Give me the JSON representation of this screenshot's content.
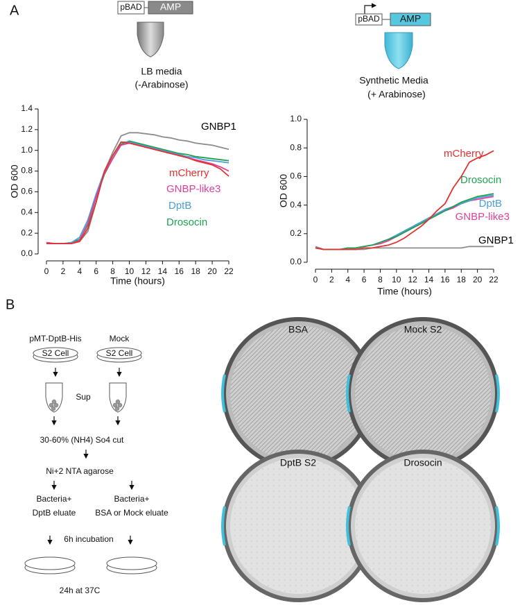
{
  "panel_a": {
    "label": "A",
    "left_construct": {
      "promoter": "pBAD",
      "gene": "AMP"
    },
    "left_condition": [
      "LB media",
      "(-Arabinose)"
    ],
    "right_construct": {
      "promoter": "pBAD",
      "gene": "AMP"
    },
    "right_condition": [
      "Synthetic Media",
      "(+ Arabinose)"
    ]
  },
  "chart_data": [
    {
      "type": "line",
      "x_label": "Time (hours)",
      "y_label": "OD 600",
      "x": [
        0,
        1,
        2,
        3,
        4,
        5,
        6,
        7,
        8,
        9,
        10,
        11,
        12,
        13,
        14,
        15,
        16,
        17,
        18,
        19,
        20,
        21,
        22
      ],
      "xlim": [
        0,
        22
      ],
      "xticks": [
        0,
        2,
        4,
        6,
        8,
        10,
        12,
        14,
        16,
        18,
        20,
        22
      ],
      "ylim": [
        0,
        1.4
      ],
      "yticks": [
        {
          "value": 0,
          "label": "0.0"
        },
        0.2,
        0.4,
        0.6,
        0.8,
        {
          "value": 1,
          "label": "1.0"
        },
        1.2,
        1.4
      ],
      "series": [
        {
          "name": "mCherry",
          "color": "#e2312e",
          "values": [
            0.1,
            0.1,
            0.1,
            0.1,
            0.12,
            0.25,
            0.5,
            0.8,
            0.95,
            1.08,
            1.07,
            1.05,
            1.03,
            1.01,
            0.99,
            0.97,
            0.95,
            0.93,
            0.9,
            0.88,
            0.86,
            0.82,
            0.75
          ]
        },
        {
          "name": "GNBP-like3",
          "color": "#e0409a",
          "values": [
            0.11,
            0.1,
            0.1,
            0.1,
            0.13,
            0.3,
            0.55,
            0.78,
            0.92,
            1.05,
            1.07,
            1.05,
            1.03,
            1.01,
            0.99,
            0.97,
            0.95,
            0.93,
            0.91,
            0.89,
            0.87,
            0.84,
            0.8
          ]
        },
        {
          "name": "DptB",
          "color": "#4a9fd8",
          "values": [
            0.11,
            0.1,
            0.1,
            0.11,
            0.16,
            0.33,
            0.58,
            0.8,
            0.95,
            1.08,
            1.08,
            1.06,
            1.04,
            1.02,
            1,
            0.98,
            0.96,
            0.94,
            0.93,
            0.91,
            0.9,
            0.89,
            0.88
          ]
        },
        {
          "name": "Drosocin",
          "color": "#1fa050",
          "values": [
            0.1,
            0.1,
            0.1,
            0.11,
            0.14,
            0.28,
            0.55,
            0.77,
            0.92,
            1.06,
            1.09,
            1.07,
            1.05,
            1.03,
            1.01,
            0.99,
            0.97,
            0.96,
            0.94,
            0.93,
            0.92,
            0.91,
            0.9
          ]
        },
        {
          "name": "GNBP1",
          "color": "#8c8c8c",
          "label_color": "#000000",
          "values": [
            0.11,
            0.1,
            0.1,
            0.1,
            0.12,
            0.22,
            0.5,
            0.8,
            0.98,
            1.14,
            1.17,
            1.17,
            1.16,
            1.15,
            1.13,
            1.12,
            1.1,
            1.09,
            1.07,
            1.06,
            1.05,
            1.03,
            1.01
          ]
        }
      ]
    },
    {
      "type": "line",
      "x_label": "Time (hours)",
      "y_label": "OD 600",
      "x": [
        0,
        1,
        2,
        3,
        4,
        5,
        6,
        7,
        8,
        9,
        10,
        11,
        12,
        13,
        14,
        15,
        16,
        17,
        18,
        19,
        20,
        21,
        22
      ],
      "xlim": [
        0,
        22
      ],
      "xticks": [
        0,
        2,
        4,
        6,
        8,
        10,
        12,
        14,
        16,
        18,
        20,
        22
      ],
      "ylim": [
        0,
        1
      ],
      "yticks": [
        {
          "value": 0,
          "label": "0.0"
        },
        0.2,
        0.4,
        0.6,
        0.8,
        {
          "value": 1,
          "label": "1.0"
        }
      ],
      "series": [
        {
          "name": "mCherry",
          "color": "#e2312e",
          "values": [
            0.1,
            0.09,
            0.09,
            0.09,
            0.09,
            0.09,
            0.1,
            0.1,
            0.11,
            0.12,
            0.14,
            0.17,
            0.21,
            0.25,
            0.3,
            0.36,
            0.41,
            0.52,
            0.6,
            0.7,
            0.73,
            0.75,
            0.78
          ]
        },
        {
          "name": "Drosocin",
          "color": "#1fa050",
          "values": [
            0.1,
            0.09,
            0.09,
            0.09,
            0.1,
            0.1,
            0.11,
            0.12,
            0.14,
            0.16,
            0.18,
            0.21,
            0.24,
            0.27,
            0.3,
            0.33,
            0.36,
            0.39,
            0.42,
            0.44,
            0.46,
            0.47,
            0.48
          ]
        },
        {
          "name": "DptB",
          "color": "#4a9fd8",
          "values": [
            0.1,
            0.09,
            0.09,
            0.09,
            0.1,
            0.1,
            0.11,
            0.12,
            0.14,
            0.16,
            0.19,
            0.22,
            0.25,
            0.28,
            0.31,
            0.34,
            0.37,
            0.39,
            0.41,
            0.43,
            0.45,
            0.46,
            0.47
          ]
        },
        {
          "name": "GNBP-like3",
          "color": "#e0409a",
          "values": [
            0.1,
            0.09,
            0.09,
            0.09,
            0.09,
            0.1,
            0.11,
            0.12,
            0.13,
            0.15,
            0.18,
            0.21,
            0.24,
            0.27,
            0.3,
            0.33,
            0.36,
            0.38,
            0.41,
            0.43,
            0.44,
            0.45,
            0.46
          ]
        },
        {
          "name": "GNBP1",
          "color": "#8c8c8c",
          "label_color": "#000000",
          "values": [
            0.11,
            0.09,
            0.09,
            0.09,
            0.09,
            0.09,
            0.09,
            0.1,
            0.1,
            0.1,
            0.1,
            0.1,
            0.1,
            0.1,
            0.1,
            0.1,
            0.1,
            0.1,
            0.1,
            0.11,
            0.11,
            0.11,
            0.11
          ]
        }
      ]
    }
  ],
  "panel_b": {
    "label": "B",
    "flow": {
      "construct": "pMT-DptB-His",
      "control": "Mock",
      "cell_left": "S2 Cell",
      "cell_right": "S2 Cell",
      "sup": "Sup",
      "cut": "30-60% (NH4) So4 cut",
      "column": "Ni+2 NTA agarose",
      "left_mix": [
        "Bacteria+",
        "DptB eluate"
      ],
      "right_mix": [
        "Bacteria+",
        "BSA or Mock eluate"
      ],
      "incubation": "6h incubation",
      "growth": "24h at 37C"
    },
    "plates": [
      "BSA",
      "Mock S2",
      "DptB S2",
      "Drosocin"
    ]
  }
}
